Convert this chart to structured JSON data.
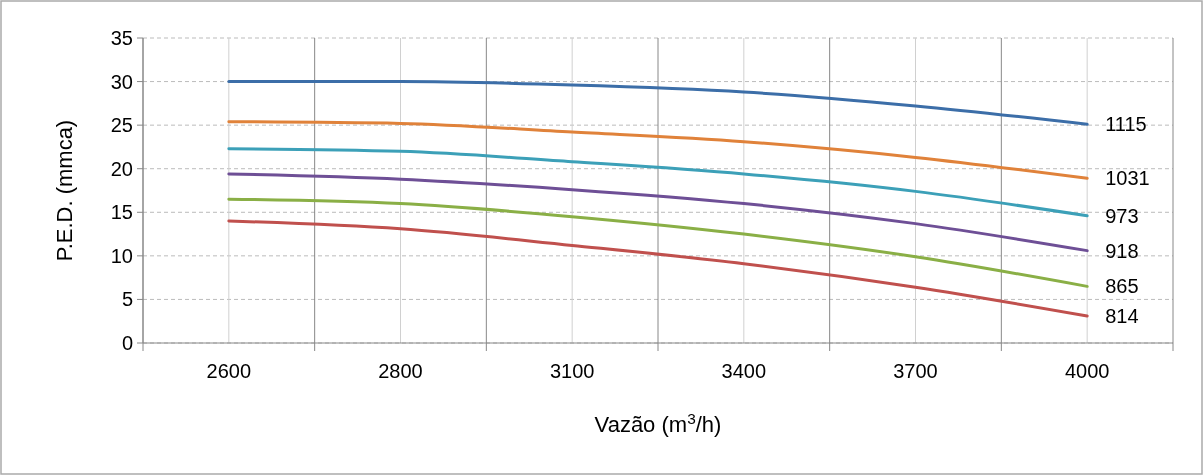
{
  "chart_data": {
    "type": "line",
    "xlabel": "Vazão (m$^{3}$/h)",
    "ylabel": "P.E.D. (mmca)",
    "categories": [
      "2600",
      "2800",
      "3100",
      "3400",
      "3700",
      "4000"
    ],
    "ylim": [
      0,
      35
    ],
    "yticks": [
      0,
      5,
      10,
      15,
      20,
      25,
      30,
      35
    ],
    "grid": true,
    "marker": "none",
    "line_style": "solid",
    "series": [
      {
        "name": "1115",
        "color": "#3c6ea8",
        "values": [
          30.0,
          30.0,
          29.6,
          28.8,
          27.2,
          25.1
        ]
      },
      {
        "name": "1031",
        "color": "#e0823a",
        "values": [
          25.4,
          25.2,
          24.2,
          23.1,
          21.3,
          18.9
        ]
      },
      {
        "name": "973",
        "color": "#3ca0b8",
        "values": [
          22.3,
          22.0,
          20.8,
          19.4,
          17.4,
          14.6
        ]
      },
      {
        "name": "918",
        "color": "#6e4f96",
        "values": [
          19.4,
          18.8,
          17.6,
          16.0,
          13.7,
          10.6
        ]
      },
      {
        "name": "865",
        "color": "#8aaf46",
        "values": [
          16.5,
          16.0,
          14.5,
          12.5,
          9.9,
          6.5
        ]
      },
      {
        "name": "814",
        "color": "#c0504d",
        "values": [
          14.0,
          13.1,
          11.2,
          9.1,
          6.4,
          3.1
        ]
      }
    ]
  }
}
